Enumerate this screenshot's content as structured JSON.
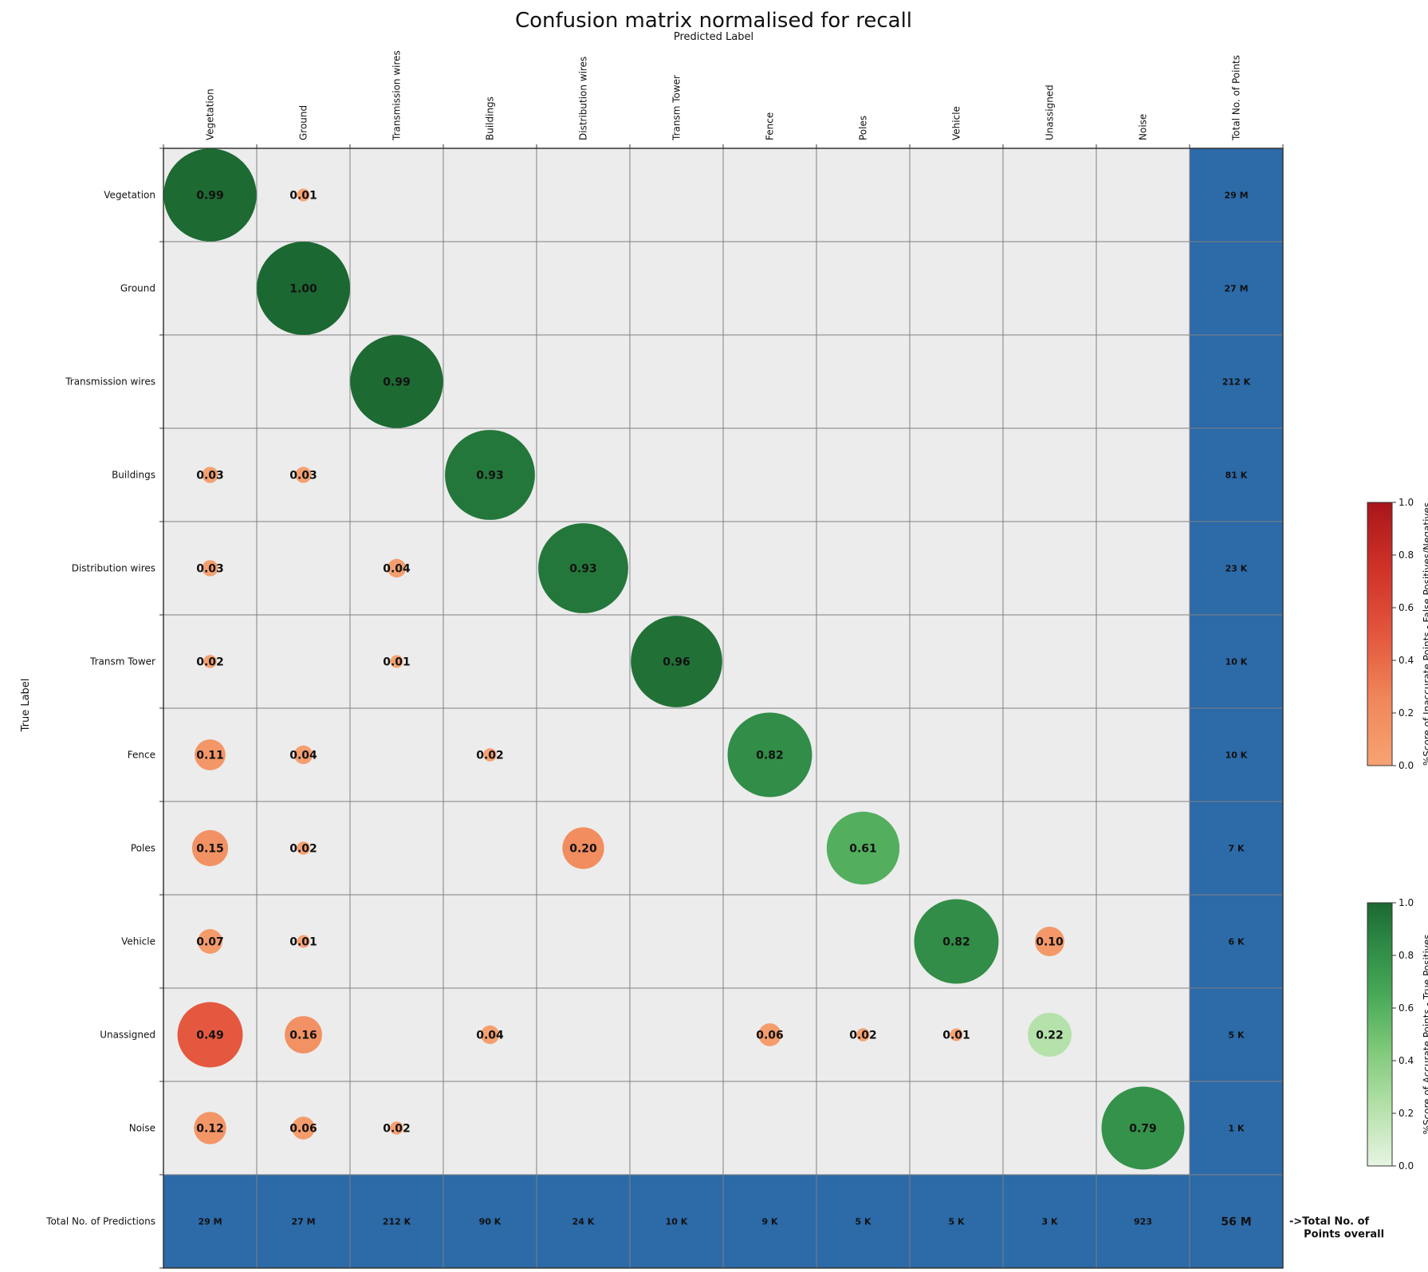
{
  "chart_data": {
    "type": "heatmap",
    "title": "Confusion matrix normalised for recall",
    "xlabel": "Predicted Label",
    "ylabel": "True Label",
    "x_categories": [
      "Vegetation",
      "Ground",
      "Transmission wires",
      "Buildings",
      "Distribution wires",
      "Transm Tower",
      "Fence",
      "Poles",
      "Vehicle",
      "Unassigned",
      "Noise"
    ],
    "y_categories": [
      "Vegetation",
      "Ground",
      "Transmission wires",
      "Buildings",
      "Distribution wires",
      "Transm Tower",
      "Fence",
      "Poles",
      "Vehicle",
      "Unassigned",
      "Noise"
    ],
    "total_column_label": "Total No. of Points",
    "total_row_label": "Total No. of Predictions",
    "matrix": [
      [
        0.99,
        0.01,
        0,
        0,
        0,
        0,
        0,
        0,
        0,
        0,
        0
      ],
      [
        0,
        1.0,
        0,
        0,
        0,
        0,
        0,
        0,
        0,
        0,
        0
      ],
      [
        0,
        0,
        0.99,
        0,
        0,
        0,
        0,
        0,
        0,
        0,
        0
      ],
      [
        0.03,
        0.03,
        0,
        0.93,
        0,
        0,
        0,
        0,
        0,
        0,
        0
      ],
      [
        0.03,
        0,
        0.04,
        0,
        0.93,
        0,
        0,
        0,
        0,
        0,
        0
      ],
      [
        0.02,
        0,
        0.01,
        0,
        0,
        0.96,
        0,
        0,
        0,
        0,
        0
      ],
      [
        0.11,
        0.04,
        0,
        0.02,
        0,
        0,
        0.82,
        0,
        0,
        0,
        0
      ],
      [
        0.15,
        0.02,
        0,
        0,
        0.2,
        0,
        0,
        0.61,
        0,
        0,
        0
      ],
      [
        0.07,
        0.01,
        0,
        0,
        0,
        0,
        0,
        0,
        0.82,
        0.1,
        0
      ],
      [
        0.49,
        0.16,
        0,
        0.04,
        0,
        0,
        0.06,
        0.02,
        0.01,
        0.22,
        0
      ],
      [
        0.12,
        0.06,
        0.02,
        0,
        0,
        0,
        0,
        0,
        0,
        0,
        0.79
      ]
    ],
    "row_totals": [
      "29 M",
      "27 M",
      "212 K",
      "81 K",
      "23 K",
      "10 K",
      "10 K",
      "7 K",
      "6 K",
      "5 K",
      "1 K"
    ],
    "column_totals": [
      "29 M",
      "27 M",
      "212 K",
      "90 K",
      "24 K",
      "10 K",
      "9 K",
      "5 K",
      "5 K",
      "3 K",
      "923"
    ],
    "grand_total": "56 M",
    "grand_total_note": "->Total No. of\n    Points overall",
    "colorbars": [
      {
        "label": "%Score of Inaccurate Points - False Positives/Negatives",
        "range": [
          0.0,
          1.0
        ],
        "ticks": [
          "0.0",
          "0.2",
          "0.4",
          "0.6",
          "0.8",
          "1.0"
        ],
        "colormap": "oranges-reds"
      },
      {
        "label": "%Score of Accurate Points - True Positives",
        "range": [
          0.0,
          1.0
        ],
        "ticks": [
          "0.0",
          "0.2",
          "0.4",
          "0.6",
          "0.8",
          "1.0"
        ],
        "colormap": "greens"
      }
    ],
    "colors": {
      "cell_background": "#ececec",
      "grid": "#808080",
      "totals": "#2c6aa8"
    }
  }
}
